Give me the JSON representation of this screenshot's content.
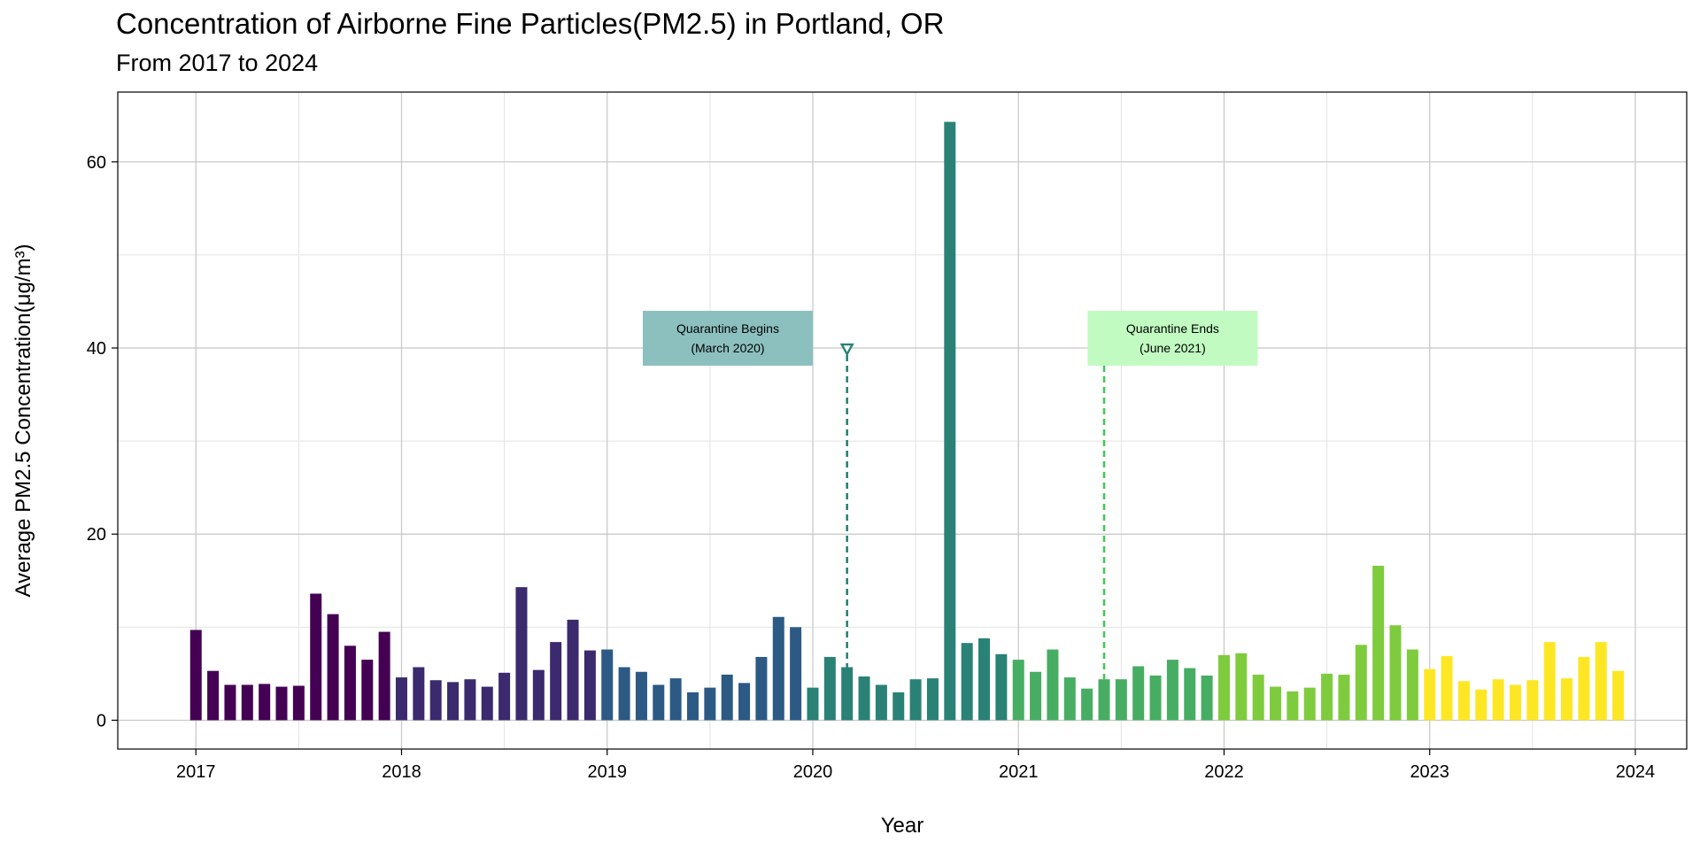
{
  "chart_data": {
    "type": "bar",
    "title": "Concentration of Airborne Fine Particles(PM2.5) in Portland, OR",
    "subtitle": "From 2017 to 2024",
    "xlabel": "Year",
    "ylabel": "Average PM2.5 Concentration(μg/m³)",
    "xlim": [
      2016.62,
      2024.25
    ],
    "ylim": [
      -3.1,
      67.5
    ],
    "x_ticks": [
      2017,
      2018,
      2019,
      2020,
      2021,
      2022,
      2023,
      2024
    ],
    "x_tick_labels": [
      "2017",
      "2018",
      "2019",
      "2020",
      "2021",
      "2022",
      "2023",
      "2024"
    ],
    "y_ticks": [
      0,
      20,
      40,
      60
    ],
    "y_tick_labels": [
      "0",
      "20",
      "40",
      "60"
    ],
    "grid": true,
    "color_scale": "viridis (by year)",
    "year_colors": {
      "2017": "#440154",
      "2018": "#3b2a6e",
      "2019": "#2c5a85",
      "2020": "#2a8276",
      "2021": "#47ad63",
      "2022": "#7fcb3e",
      "2023": "#fde725"
    },
    "series": [
      {
        "year": 2017,
        "months": [
          "Jan",
          "Feb",
          "Mar",
          "Apr",
          "May",
          "Jun",
          "Jul",
          "Aug",
          "Sep",
          "Oct",
          "Nov",
          "Dec"
        ],
        "values": [
          9.7,
          5.3,
          3.8,
          3.8,
          3.9,
          3.6,
          3.7,
          13.6,
          11.4,
          8.0,
          6.5,
          9.5
        ]
      },
      {
        "year": 2018,
        "months": [
          "Jan",
          "Feb",
          "Mar",
          "Apr",
          "May",
          "Jun",
          "Jul",
          "Aug",
          "Sep",
          "Oct",
          "Nov",
          "Dec"
        ],
        "values": [
          4.6,
          5.7,
          4.3,
          4.1,
          4.4,
          3.6,
          5.1,
          14.3,
          5.4,
          8.4,
          10.8,
          7.5
        ]
      },
      {
        "year": 2019,
        "months": [
          "Jan",
          "Feb",
          "Mar",
          "Apr",
          "May",
          "Jun",
          "Jul",
          "Aug",
          "Sep",
          "Oct",
          "Nov",
          "Dec"
        ],
        "values": [
          7.6,
          5.7,
          5.2,
          3.8,
          4.5,
          3.0,
          3.5,
          4.9,
          4.0,
          6.8,
          11.1,
          10.0
        ]
      },
      {
        "year": 2020,
        "months": [
          "Jan",
          "Feb",
          "Mar",
          "Apr",
          "May",
          "Jun",
          "Jul",
          "Aug",
          "Sep",
          "Oct",
          "Nov",
          "Dec"
        ],
        "values": [
          3.5,
          6.8,
          5.7,
          4.7,
          3.8,
          3.0,
          4.4,
          4.5,
          64.3,
          8.3,
          8.8,
          7.1
        ]
      },
      {
        "year": 2021,
        "months": [
          "Jan",
          "Feb",
          "Mar",
          "Apr",
          "May",
          "Jun",
          "Jul",
          "Aug",
          "Sep",
          "Oct",
          "Nov",
          "Dec"
        ],
        "values": [
          6.5,
          5.2,
          7.6,
          4.6,
          3.4,
          4.4,
          4.4,
          5.8,
          4.8,
          6.5,
          5.6,
          4.8
        ]
      },
      {
        "year": 2022,
        "months": [
          "Jan",
          "Feb",
          "Mar",
          "Apr",
          "May",
          "Jun",
          "Jul",
          "Aug",
          "Sep",
          "Oct",
          "Nov",
          "Dec"
        ],
        "values": [
          7.0,
          7.2,
          4.9,
          3.6,
          3.1,
          3.5,
          5.0,
          4.9,
          8.1,
          16.6,
          10.2,
          7.6
        ]
      },
      {
        "year": 2023,
        "months": [
          "Jan",
          "Feb",
          "Mar",
          "Apr",
          "May",
          "Jun",
          "Jul",
          "Aug",
          "Sep",
          "Oct",
          "Nov",
          "Dec"
        ],
        "values": [
          5.5,
          6.9,
          4.2,
          3.3,
          4.4,
          3.8,
          4.3,
          8.4,
          4.5,
          6.8,
          8.4,
          5.3
        ]
      }
    ],
    "annotations": [
      {
        "label_line1": "Quarantine Begins",
        "label_line2": "(March 2020)",
        "x": "2020-03",
        "y": 40,
        "color": "#2a8276",
        "box_color": "#8cc0bf",
        "box_side": "left"
      },
      {
        "label_line1": "Quarantine Ends",
        "label_line2": "(June 2021)",
        "x": "2021-06",
        "y": 40,
        "color": "#47c45a",
        "box_color": "#c1fbc1",
        "box_side": "right"
      }
    ]
  }
}
